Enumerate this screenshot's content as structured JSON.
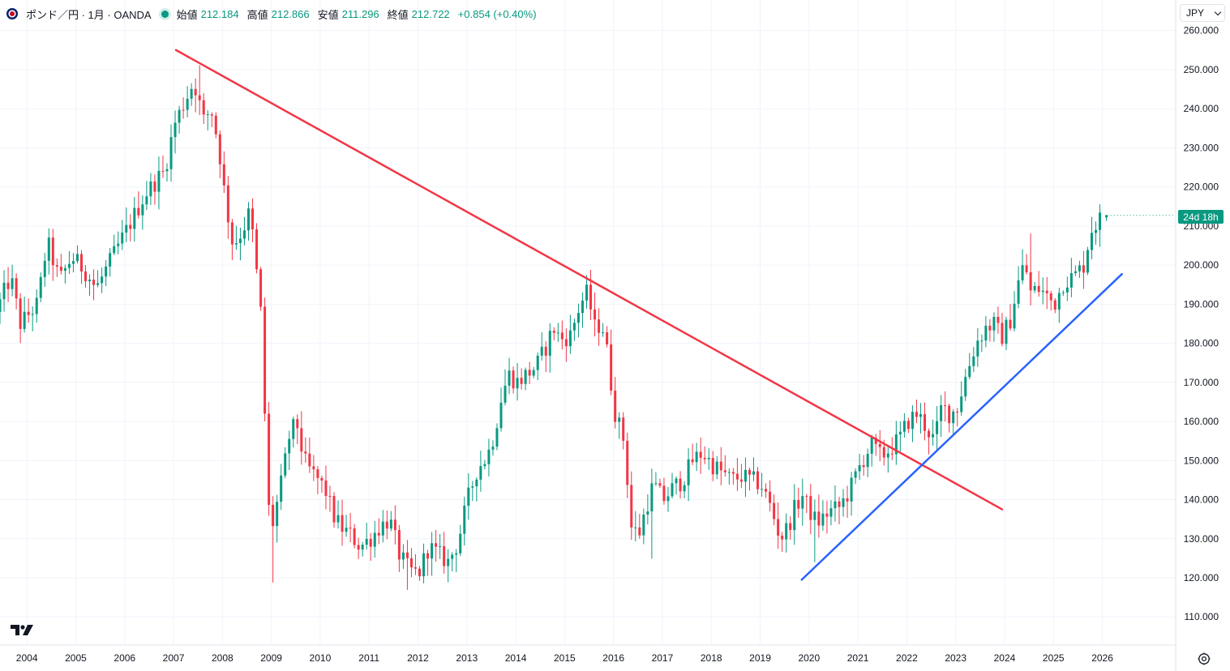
{
  "legend": {
    "symbol_title": "ポンド／円 · 1月 · OANDA",
    "open_label": "始値",
    "open_value": "212.184",
    "high_label": "高値",
    "high_value": "212.866",
    "low_label": "安値",
    "low_value": "211.296",
    "close_label": "終値",
    "close_value": "212.722",
    "change": "+0.854 (+0.40%)"
  },
  "currency_selector": {
    "value": "JPY"
  },
  "price_badge": {
    "countdown": "24d 18h"
  },
  "colors": {
    "up": "#089981",
    "down": "#f23645",
    "resistance_line": "#f23645",
    "support_line": "#2962ff",
    "grid": "#f0f3fa",
    "axis_text": "#131722"
  },
  "chart_data": {
    "type": "candlestick",
    "title": "ポンド／円 · 1月 · OANDA",
    "interval": "1M",
    "ylim": [
      103,
      262
    ],
    "yticks": [
      "260.000",
      "250.000",
      "240.000",
      "230.000",
      "220.000",
      "210.000",
      "200.000",
      "190.000",
      "180.000",
      "170.000",
      "160.000",
      "150.000",
      "140.000",
      "130.000",
      "120.000",
      "110.000"
    ],
    "xlim": [
      2003.45,
      2027.5
    ],
    "xticks": [
      "2004",
      "2005",
      "2006",
      "2007",
      "2008",
      "2009",
      "2010",
      "2011",
      "2012",
      "2013",
      "2014",
      "2015",
      "2016",
      "2017",
      "2018",
      "2019",
      "2020",
      "2021",
      "2022",
      "2023",
      "2024",
      "2025",
      "2026"
    ],
    "anchors": [
      [
        2003.45,
        188
      ],
      [
        2003.75,
        197
      ],
      [
        2003.95,
        185
      ],
      [
        2004.3,
        190
      ],
      [
        2004.5,
        206
      ],
      [
        2004.75,
        196
      ],
      [
        2005.0,
        202
      ],
      [
        2005.25,
        199
      ],
      [
        2005.5,
        194
      ],
      [
        2005.75,
        200
      ],
      [
        2006.0,
        206
      ],
      [
        2006.25,
        212
      ],
      [
        2006.5,
        218
      ],
      [
        2006.75,
        222
      ],
      [
        2006.9,
        224
      ],
      [
        2007.1,
        236
      ],
      [
        2007.35,
        243
      ],
      [
        2007.5,
        247
      ],
      [
        2007.7,
        237
      ],
      [
        2007.85,
        240
      ],
      [
        2008.0,
        231
      ],
      [
        2008.15,
        216
      ],
      [
        2008.3,
        205
      ],
      [
        2008.5,
        209
      ],
      [
        2008.65,
        214
      ],
      [
        2008.8,
        196
      ],
      [
        2008.9,
        184
      ],
      [
        2009.0,
        140
      ],
      [
        2009.1,
        133
      ],
      [
        2009.3,
        145
      ],
      [
        2009.45,
        156
      ],
      [
        2009.6,
        160
      ],
      [
        2009.75,
        150
      ],
      [
        2009.9,
        147
      ],
      [
        2010.05,
        145
      ],
      [
        2010.2,
        142
      ],
      [
        2010.35,
        136
      ],
      [
        2010.5,
        133
      ],
      [
        2010.7,
        131
      ],
      [
        2010.9,
        128
      ],
      [
        2011.1,
        130
      ],
      [
        2011.3,
        133
      ],
      [
        2011.5,
        135
      ],
      [
        2011.7,
        126
      ],
      [
        2011.9,
        122
      ],
      [
        2012.1,
        121
      ],
      [
        2012.3,
        128
      ],
      [
        2012.5,
        126
      ],
      [
        2012.7,
        124
      ],
      [
        2012.9,
        129
      ],
      [
        2013.1,
        140
      ],
      [
        2013.3,
        148
      ],
      [
        2013.5,
        151
      ],
      [
        2013.65,
        157
      ],
      [
        2013.8,
        167
      ],
      [
        2013.95,
        172
      ],
      [
        2014.1,
        170
      ],
      [
        2014.3,
        172
      ],
      [
        2014.5,
        174
      ],
      [
        2014.7,
        179
      ],
      [
        2014.85,
        184
      ],
      [
        2015.0,
        181
      ],
      [
        2015.2,
        182
      ],
      [
        2015.4,
        190
      ],
      [
        2015.55,
        193
      ],
      [
        2015.7,
        184
      ],
      [
        2015.85,
        185
      ],
      [
        2015.95,
        178
      ],
      [
        2016.1,
        163
      ],
      [
        2016.3,
        155
      ],
      [
        2016.45,
        133
      ],
      [
        2016.6,
        131
      ],
      [
        2016.75,
        138
      ],
      [
        2016.9,
        144
      ],
      [
        2017.1,
        140
      ],
      [
        2017.3,
        143
      ],
      [
        2017.5,
        145
      ],
      [
        2017.7,
        150
      ],
      [
        2017.9,
        152
      ],
      [
        2018.1,
        149
      ],
      [
        2018.3,
        147
      ],
      [
        2018.5,
        145
      ],
      [
        2018.7,
        146
      ],
      [
        2018.9,
        145
      ],
      [
        2019.1,
        144
      ],
      [
        2019.3,
        138
      ],
      [
        2019.5,
        130
      ],
      [
        2019.65,
        133
      ],
      [
        2019.8,
        138
      ],
      [
        2019.95,
        141
      ],
      [
        2020.1,
        137
      ],
      [
        2020.25,
        134
      ],
      [
        2020.5,
        137
      ],
      [
        2020.7,
        138
      ],
      [
        2020.9,
        142
      ],
      [
        2021.1,
        148
      ],
      [
        2021.35,
        154
      ],
      [
        2021.55,
        151
      ],
      [
        2021.75,
        153
      ],
      [
        2021.95,
        156
      ],
      [
        2022.1,
        160
      ],
      [
        2022.3,
        162
      ],
      [
        2022.5,
        158
      ],
      [
        2022.65,
        155
      ],
      [
        2022.8,
        164
      ],
      [
        2022.95,
        162
      ],
      [
        2023.1,
        163
      ],
      [
        2023.3,
        172
      ],
      [
        2023.5,
        180
      ],
      [
        2023.7,
        184
      ],
      [
        2023.9,
        185
      ],
      [
        2024.0,
        181
      ],
      [
        2024.2,
        186
      ],
      [
        2024.35,
        195
      ],
      [
        2024.5,
        201
      ],
      [
        2024.6,
        193
      ],
      [
        2024.8,
        194
      ],
      [
        2024.95,
        192
      ],
      [
        2025.1,
        190
      ],
      [
        2025.3,
        196
      ],
      [
        2025.5,
        197
      ],
      [
        2025.7,
        200
      ],
      [
        2025.85,
        209
      ],
      [
        2026.1,
        212.7
      ]
    ],
    "extremes": [
      {
        "x": 2007.5,
        "high": 251.1
      },
      {
        "x": 2009.0,
        "low": 118.8
      },
      {
        "x": 2011.75,
        "low": 116.9
      },
      {
        "x": 2015.55,
        "high": 195.9
      },
      {
        "x": 2016.75,
        "low": 124.9
      },
      {
        "x": 2020.15,
        "low": 124.0
      },
      {
        "x": 2024.5,
        "high": 208.1
      },
      {
        "x": 2026.0,
        "high": 214.9
      }
    ],
    "last_candle": {
      "open": 212.184,
      "high": 212.866,
      "low": 211.296,
      "close": 212.722
    },
    "trendlines": [
      {
        "name": "resistance",
        "color": "#f23645",
        "points": [
          [
            2007.05,
            255.0
          ],
          [
            2023.95,
            137.5
          ]
        ]
      },
      {
        "name": "support",
        "color": "#2962ff",
        "points": [
          [
            2019.85,
            119.5
          ],
          [
            2026.4,
            197.7
          ]
        ]
      }
    ]
  }
}
